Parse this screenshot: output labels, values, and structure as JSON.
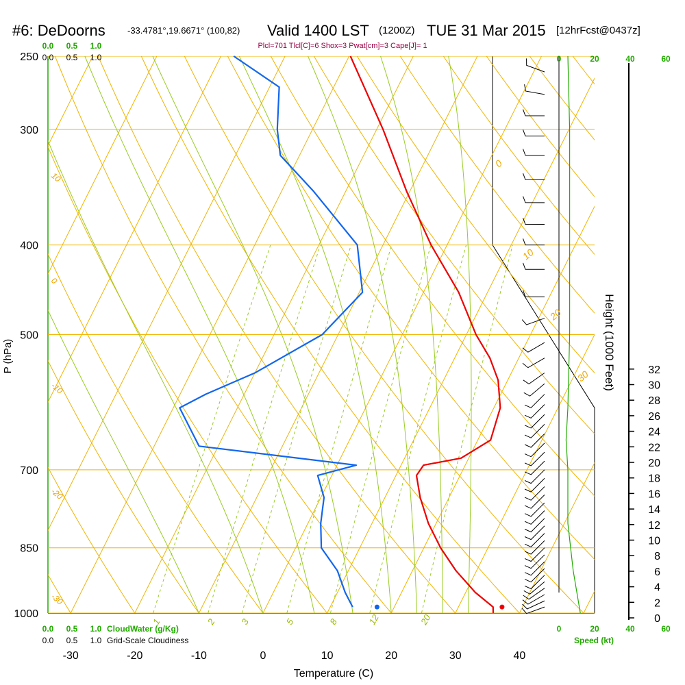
{
  "title": {
    "station": "#6: DeDoorns",
    "coords": "-33.4781°,19.6671° (100,82)",
    "valid": "Valid 1400 LST",
    "zulu": "(1200Z)",
    "date": "TUE 31 Mar 2015",
    "forecast": "[12hrFcst@0437z]"
  },
  "params_line": "Plcl=701 Tlcl[C]=6 Shox=3 Pwat[cm]=3 Cape[J]= 1",
  "chart_data": {
    "type": "line",
    "xlabel": "Temperature (C)",
    "ylabel": "P (hPa)",
    "right_label": "Height (1000 Feet)",
    "x_ticks": [
      "-30",
      "-20",
      "-10",
      "0",
      "10",
      "20",
      "30",
      "40"
    ],
    "p_ticks": [
      "250",
      "300",
      "400",
      "500",
      "700",
      "850",
      "1000"
    ],
    "height_ticks": [
      "0",
      "2",
      "4",
      "6",
      "8",
      "10",
      "12",
      "14",
      "16",
      "18",
      "20",
      "22",
      "24",
      "26",
      "28",
      "30",
      "32"
    ],
    "speed_ticks": [
      "0",
      "20",
      "40",
      "60"
    ],
    "speed_label": "Speed (kt)",
    "cloud_ticks": [
      "0.0",
      "0.5",
      "1.0"
    ],
    "cloudwater_label": "CloudWater (g/Kg)",
    "cloudiness_label": "Grid-Scale Cloudiness",
    "dry_adiabat_labels": [
      "10",
      "0",
      "-10",
      "-20",
      "-30"
    ],
    "theta_labels": [
      "0",
      "10",
      "20",
      "30"
    ],
    "mixing_ratio_labels": [
      "1",
      "2",
      "3",
      "5",
      "8",
      "12",
      "20"
    ],
    "series": [
      {
        "color": "#ee0000",
        "points": [
          [
            1000,
            35.9
          ],
          [
            985,
            35.4
          ],
          [
            950,
            31.5
          ],
          [
            900,
            26.8
          ],
          [
            850,
            22.6
          ],
          [
            800,
            18.8
          ],
          [
            750,
            15.5
          ],
          [
            710,
            13.2
          ],
          [
            692,
            13.5
          ],
          [
            680,
            18.8
          ],
          [
            650,
            22.0
          ],
          [
            600,
            21.0
          ],
          [
            560,
            18.5
          ],
          [
            530,
            15.5
          ],
          [
            500,
            11.5
          ],
          [
            450,
            5.5
          ],
          [
            400,
            -2.5
          ],
          [
            350,
            -10.5
          ],
          [
            300,
            -19.0
          ],
          [
            250,
            -29.8
          ]
        ]
      },
      {
        "color": "#1166ee",
        "points": [
          [
            985,
            13.5
          ],
          [
            950,
            11.2
          ],
          [
            900,
            8.3
          ],
          [
            850,
            4.0
          ],
          [
            800,
            2.0
          ],
          [
            750,
            0.5
          ],
          [
            710,
            -2.2
          ],
          [
            692,
            3.0
          ],
          [
            660,
            -23.0
          ],
          [
            600,
            -29.0
          ],
          [
            580,
            -26.0
          ],
          [
            550,
            -20.0
          ],
          [
            500,
            -12.5
          ],
          [
            450,
            -9.5
          ],
          [
            400,
            -14.0
          ],
          [
            350,
            -25.0
          ],
          [
            320,
            -33.0
          ],
          [
            300,
            -35.5
          ],
          [
            270,
            -38.5
          ],
          [
            250,
            -48.0
          ]
        ]
      }
    ],
    "surface": {
      "temp": 36.8,
      "dewpoint": 17.3
    },
    "wind_speed_profile_kt": [
      [
        1000,
        12
      ],
      [
        900,
        8
      ],
      [
        800,
        5
      ],
      [
        700,
        5
      ],
      [
        650,
        4
      ],
      [
        600,
        5
      ],
      [
        500,
        6
      ],
      [
        400,
        6
      ],
      [
        300,
        6
      ],
      [
        250,
        5
      ]
    ],
    "barbs": [
      {
        "p": 985,
        "dir": 250,
        "spd": 10
      },
      {
        "p": 970,
        "dir": 245,
        "spd": 10
      },
      {
        "p": 955,
        "dir": 240,
        "spd": 10
      },
      {
        "p": 940,
        "dir": 235,
        "spd": 10
      },
      {
        "p": 925,
        "dir": 230,
        "spd": 10
      },
      {
        "p": 910,
        "dir": 225,
        "spd": 10
      },
      {
        "p": 895,
        "dir": 225,
        "spd": 10
      },
      {
        "p": 880,
        "dir": 225,
        "spd": 10
      },
      {
        "p": 865,
        "dir": 225,
        "spd": 10
      },
      {
        "p": 850,
        "dir": 225,
        "spd": 10
      },
      {
        "p": 835,
        "dir": 225,
        "spd": 10
      },
      {
        "p": 820,
        "dir": 225,
        "spd": 10
      },
      {
        "p": 805,
        "dir": 225,
        "spd": 10
      },
      {
        "p": 790,
        "dir": 225,
        "spd": 10
      },
      {
        "p": 775,
        "dir": 225,
        "spd": 10
      },
      {
        "p": 760,
        "dir": 225,
        "spd": 10
      },
      {
        "p": 745,
        "dir": 225,
        "spd": 10
      },
      {
        "p": 730,
        "dir": 225,
        "spd": 10
      },
      {
        "p": 715,
        "dir": 225,
        "spd": 10
      },
      {
        "p": 700,
        "dir": 225,
        "spd": 10
      },
      {
        "p": 685,
        "dir": 225,
        "spd": 10
      },
      {
        "p": 670,
        "dir": 225,
        "spd": 10
      },
      {
        "p": 655,
        "dir": 225,
        "spd": 10
      },
      {
        "p": 640,
        "dir": 225,
        "spd": 10
      },
      {
        "p": 625,
        "dir": 225,
        "spd": 10
      },
      {
        "p": 610,
        "dir": 225,
        "spd": 10
      },
      {
        "p": 595,
        "dir": 225,
        "spd": 10
      },
      {
        "p": 580,
        "dir": 225,
        "spd": 10
      },
      {
        "p": 565,
        "dir": 230,
        "spd": 10
      },
      {
        "p": 550,
        "dir": 235,
        "spd": 10
      },
      {
        "p": 530,
        "dir": 240,
        "spd": 10
      },
      {
        "p": 510,
        "dir": 240,
        "spd": 10
      },
      {
        "p": 480,
        "dir": 250,
        "spd": 10
      },
      {
        "p": 455,
        "dir": 270,
        "spd": 10
      },
      {
        "p": 425,
        "dir": 270,
        "spd": 10
      },
      {
        "p": 400,
        "dir": 270,
        "spd": 10
      },
      {
        "p": 380,
        "dir": 270,
        "spd": 10
      },
      {
        "p": 360,
        "dir": 270,
        "spd": 10
      },
      {
        "p": 340,
        "dir": 270,
        "spd": 10
      },
      {
        "p": 320,
        "dir": 270,
        "spd": 10
      },
      {
        "p": 305,
        "dir": 270,
        "spd": 10
      },
      {
        "p": 290,
        "dir": 270,
        "spd": 10
      },
      {
        "p": 275,
        "dir": 280,
        "spd": 10
      },
      {
        "p": 260,
        "dir": 290,
        "spd": 10
      }
    ]
  }
}
